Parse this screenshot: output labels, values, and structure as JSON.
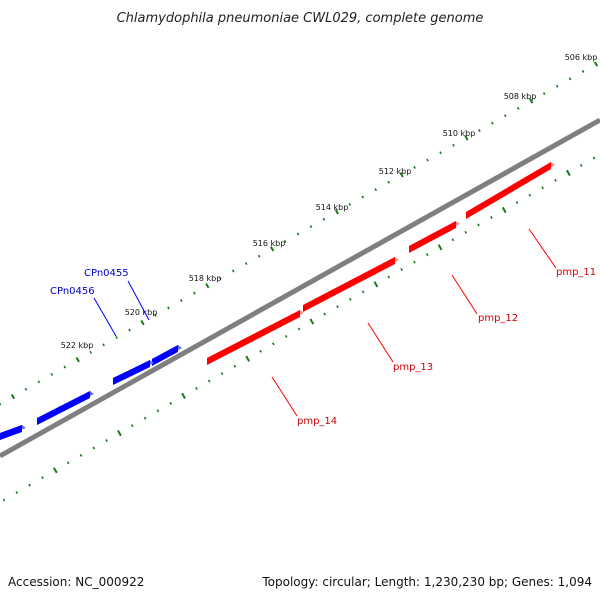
{
  "title": "Chlamydophila pneumoniae CWL029, complete genome",
  "footer": {
    "accession": "Accession: NC_000922",
    "summary": "Topology: circular; Length: 1,230,230 bp; Genes: 1,094"
  },
  "colors": {
    "backbone": "#7f7f7f",
    "tick": "#1a7a1a",
    "forward_gene": "#0000ff",
    "reverse_gene": "#ff0000",
    "forward_label": "#0000cc",
    "reverse_label": "#cc0000"
  },
  "scale": {
    "tick_labels": [
      "506 kbp",
      "508 kbp",
      "510 kbp",
      "512 kbp",
      "514 kbp",
      "516 kbp",
      "518 kbp",
      "520 kbp",
      "522 kbp"
    ]
  },
  "genes": {
    "forward": [
      {
        "label": "CPn0455"
      },
      {
        "label": "CPn0456"
      },
      {
        "label": ""
      },
      {
        "label": ""
      }
    ],
    "reverse": [
      {
        "label": "pmp_11"
      },
      {
        "label": "pmp_12"
      },
      {
        "label": "pmp_13"
      },
      {
        "label": "pmp_14"
      }
    ]
  }
}
